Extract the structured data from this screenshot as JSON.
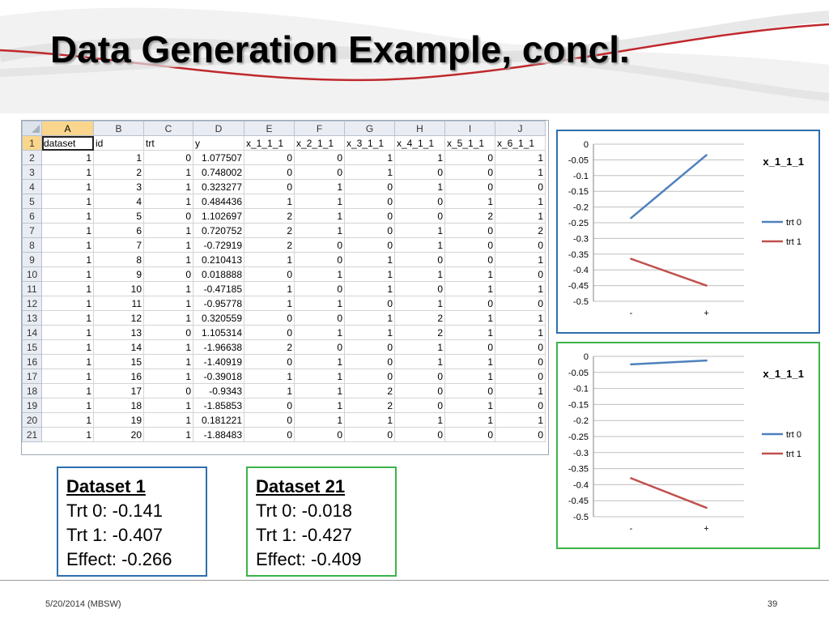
{
  "slide": {
    "title": "Data Generation Example, concl.",
    "footer_date": "5/20/2014 (MBSW)",
    "page_number": "39"
  },
  "spreadsheet": {
    "column_letters": [
      "A",
      "B",
      "C",
      "D",
      "E",
      "F",
      "G",
      "H",
      "I",
      "J"
    ],
    "selected_column": "A",
    "selected_row": "1",
    "headers": [
      "dataset",
      "id",
      "trt",
      "y",
      "x_1_1_1",
      "x_2_1_1",
      "x_3_1_1",
      "x_4_1_1",
      "x_5_1_1",
      "x_6_1_1"
    ],
    "rows": [
      [
        "1",
        "1",
        "0",
        "1.077507",
        "0",
        "0",
        "1",
        "1",
        "0",
        "1"
      ],
      [
        "1",
        "2",
        "1",
        "0.748002",
        "0",
        "0",
        "1",
        "0",
        "0",
        "1"
      ],
      [
        "1",
        "3",
        "1",
        "0.323277",
        "0",
        "1",
        "0",
        "1",
        "0",
        "0"
      ],
      [
        "1",
        "4",
        "1",
        "0.484436",
        "1",
        "1",
        "0",
        "0",
        "1",
        "1"
      ],
      [
        "1",
        "5",
        "0",
        "1.102697",
        "2",
        "1",
        "0",
        "0",
        "2",
        "1"
      ],
      [
        "1",
        "6",
        "1",
        "0.720752",
        "2",
        "1",
        "0",
        "1",
        "0",
        "2"
      ],
      [
        "1",
        "7",
        "1",
        "-0.72919",
        "2",
        "0",
        "0",
        "1",
        "0",
        "0"
      ],
      [
        "1",
        "8",
        "1",
        "0.210413",
        "1",
        "0",
        "1",
        "0",
        "0",
        "1"
      ],
      [
        "1",
        "9",
        "0",
        "0.018888",
        "0",
        "1",
        "1",
        "1",
        "1",
        "0"
      ],
      [
        "1",
        "10",
        "1",
        "-0.47185",
        "1",
        "0",
        "1",
        "0",
        "1",
        "1"
      ],
      [
        "1",
        "11",
        "1",
        "-0.95778",
        "1",
        "1",
        "0",
        "1",
        "0",
        "0"
      ],
      [
        "1",
        "12",
        "1",
        "0.320559",
        "0",
        "0",
        "1",
        "2",
        "1",
        "1"
      ],
      [
        "1",
        "13",
        "0",
        "1.105314",
        "0",
        "1",
        "1",
        "2",
        "1",
        "1"
      ],
      [
        "1",
        "14",
        "1",
        "-1.96638",
        "2",
        "0",
        "0",
        "1",
        "0",
        "0"
      ],
      [
        "1",
        "15",
        "1",
        "-1.40919",
        "0",
        "1",
        "0",
        "1",
        "1",
        "0"
      ],
      [
        "1",
        "16",
        "1",
        "-0.39018",
        "1",
        "1",
        "0",
        "0",
        "1",
        "0"
      ],
      [
        "1",
        "17",
        "0",
        "-0.9343",
        "1",
        "1",
        "2",
        "0",
        "0",
        "1"
      ],
      [
        "1",
        "18",
        "1",
        "-1.85853",
        "0",
        "1",
        "2",
        "0",
        "1",
        "0"
      ],
      [
        "1",
        "19",
        "1",
        "0.181221",
        "0",
        "1",
        "1",
        "1",
        "1",
        "1"
      ],
      [
        "1",
        "20",
        "1",
        "-1.88483",
        "0",
        "0",
        "0",
        "0",
        "0",
        "0"
      ]
    ]
  },
  "chart_data": [
    {
      "type": "line",
      "title": "x_1_1_1",
      "categories": [
        "-",
        "+"
      ],
      "ylim": [
        -0.5,
        0
      ],
      "yticks": [
        "0",
        "-0.05",
        "-0.1",
        "-0.15",
        "-0.2",
        "-0.25",
        "-0.3",
        "-0.35",
        "-0.4",
        "-0.45",
        "-0.5"
      ],
      "grid": true,
      "legend_position": "right",
      "series": [
        {
          "name": "trt 0",
          "values": [
            -0.235,
            -0.035
          ],
          "color": "#4f81bd"
        },
        {
          "name": "trt 1",
          "values": [
            -0.365,
            -0.45
          ],
          "color": "#c0504d"
        }
      ]
    },
    {
      "type": "line",
      "title": "x_1_1_1",
      "categories": [
        "-",
        "+"
      ],
      "ylim": [
        -0.5,
        0
      ],
      "yticks": [
        "0",
        "-0.05",
        "-0.1",
        "-0.15",
        "-0.2",
        "-0.25",
        "-0.3",
        "-0.35",
        "-0.4",
        "-0.45",
        "-0.5"
      ],
      "grid": true,
      "legend_position": "right",
      "series": [
        {
          "name": "trt 0",
          "values": [
            -0.025,
            -0.013
          ],
          "color": "#4f81bd"
        },
        {
          "name": "trt 1",
          "values": [
            -0.38,
            -0.472
          ],
          "color": "#c0504d"
        }
      ]
    }
  ],
  "summaries": [
    {
      "title": "Dataset 1",
      "trt0": "Trt 0: -0.141",
      "trt1": "Trt 1: -0.407",
      "effect": "Effect: -0.266",
      "border_color": "#2e6eb0"
    },
    {
      "title": "Dataset 21",
      "trt0": "Trt 0: -0.018",
      "trt1": "Trt 1: -0.427",
      "effect": "Effect: -0.409",
      "border_color": "#3cb34a"
    }
  ]
}
